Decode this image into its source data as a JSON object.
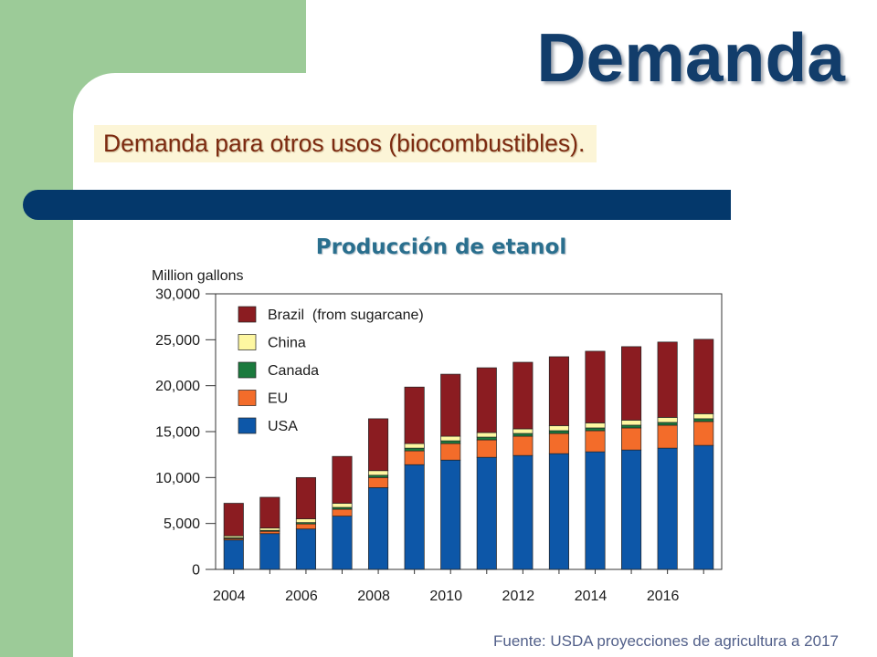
{
  "colors": {
    "sidebar_green": "#9ccb98",
    "title_navy": "#123d6b",
    "rule_bar_navy": "#04386b",
    "subtitle_bg": "#fcf5d7",
    "subtitle_text": "#7c2a10",
    "chart_title": "#2a6f8e",
    "source_text": "#52608a"
  },
  "slide": {
    "title": "Demanda",
    "subtitle": "Demanda para otros usos (biocombustibles).",
    "source": "Fuente: USDA proyecciones de agricultura a 2017"
  },
  "chart_data": {
    "type": "bar",
    "stacked": true,
    "title": "Producción de etanol",
    "ylabel": "Million gallons",
    "xlabel": "",
    "x": [
      2004,
      2005,
      2006,
      2007,
      2008,
      2009,
      2010,
      2011,
      2012,
      2013,
      2014,
      2015,
      2016,
      2017
    ],
    "x_ticks": [
      2004,
      2006,
      2008,
      2010,
      2012,
      2014,
      2016
    ],
    "y_ticks": [
      0,
      5000,
      10000,
      15000,
      20000,
      25000,
      30000
    ],
    "ylim": [
      0,
      30000
    ],
    "grid": false,
    "legend": "top-left",
    "series": [
      {
        "name": "USA",
        "color": "#0d57a8",
        "values": [
          3200,
          3900,
          4400,
          5800,
          8900,
          11400,
          11900,
          12200,
          12400,
          12600,
          12800,
          13000,
          13200,
          13500
        ]
      },
      {
        "name": "EU",
        "color": "#f36c2a",
        "values": [
          150,
          250,
          550,
          750,
          1100,
          1500,
          1800,
          1900,
          2100,
          2200,
          2300,
          2400,
          2500,
          2600
        ]
      },
      {
        "name": "Canada",
        "color": "#1b7a3d",
        "values": [
          100,
          100,
          150,
          200,
          250,
          300,
          300,
          300,
          300,
          300,
          300,
          300,
          300,
          300
        ]
      },
      {
        "name": "China",
        "color": "#fef7a1",
        "values": [
          200,
          250,
          400,
          450,
          500,
          500,
          500,
          500,
          500,
          550,
          550,
          550,
          550,
          550
        ]
      },
      {
        "name": "Brazil  (from sugarcane)",
        "color": "#8b1c21",
        "values": [
          3550,
          3350,
          4500,
          5100,
          5650,
          6150,
          6750,
          7050,
          7250,
          7500,
          7800,
          8000,
          8200,
          8100
        ]
      }
    ]
  }
}
